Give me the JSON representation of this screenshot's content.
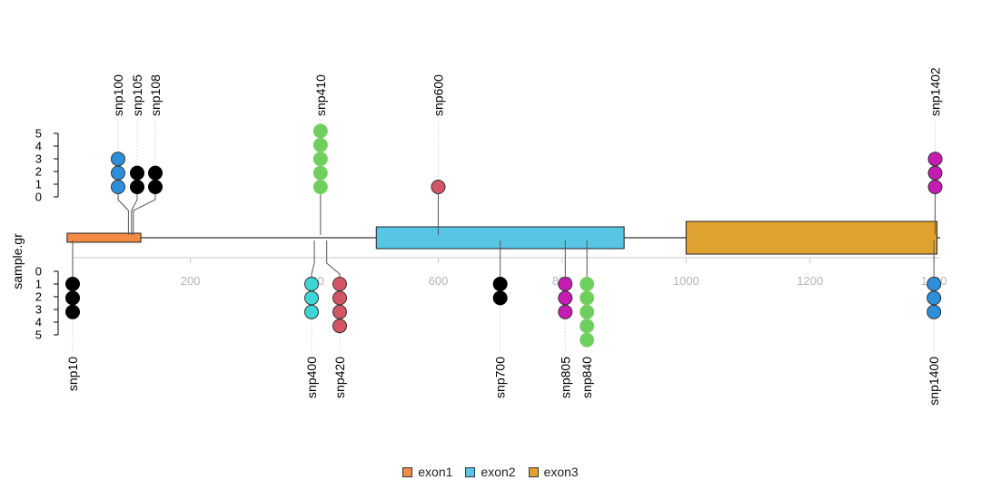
{
  "chart_data": {
    "type": "lollipop",
    "ylabel": "sample.gr",
    "xlim": [
      10,
      1410
    ],
    "x_ticks": [
      200,
      400,
      600,
      800,
      1000,
      1200,
      1400
    ],
    "y_ticks": [
      0,
      1,
      2,
      3,
      4,
      5
    ],
    "features": [
      {
        "name": "exon1",
        "start": 1,
        "end": 120,
        "color": "#F28C45"
      },
      {
        "name": "exon2",
        "start": 500,
        "end": 900,
        "color": "#56C6E4"
      },
      {
        "name": "exon3",
        "start": 1000,
        "end": 1405,
        "color": "#E0A22E"
      }
    ],
    "snps": [
      {
        "name": "snp10",
        "pos": 10,
        "score": 3,
        "side": "bottom",
        "color": "#000000"
      },
      {
        "name": "snp100",
        "pos": 100,
        "score": 3,
        "side": "top",
        "color": "#2D8FDA"
      },
      {
        "name": "snp105",
        "pos": 105,
        "score": 2,
        "side": "top",
        "color": "#000000"
      },
      {
        "name": "snp108",
        "pos": 108,
        "score": 2,
        "side": "top",
        "color": "#000000"
      },
      {
        "name": "snp400",
        "pos": 400,
        "score": 3,
        "side": "bottom",
        "color": "#3DD5D5"
      },
      {
        "name": "snp410",
        "pos": 410,
        "score": 5,
        "side": "top",
        "color": "#6DCF5C"
      },
      {
        "name": "snp420",
        "pos": 420,
        "score": 4,
        "side": "bottom",
        "color": "#D45566"
      },
      {
        "name": "snp600",
        "pos": 600,
        "score": 1,
        "side": "top",
        "color": "#D45566"
      },
      {
        "name": "snp700",
        "pos": 700,
        "score": 2,
        "side": "bottom",
        "color": "#000000"
      },
      {
        "name": "snp805",
        "pos": 805,
        "score": 3,
        "side": "bottom",
        "color": "#C61CB4"
      },
      {
        "name": "snp840",
        "pos": 840,
        "score": 5,
        "side": "bottom",
        "color": "#6DCF5C"
      },
      {
        "name": "snp1400",
        "pos": 1400,
        "score": 3,
        "side": "bottom",
        "color": "#2D8FDA"
      },
      {
        "name": "snp1402",
        "pos": 1402,
        "score": 3,
        "side": "top",
        "color": "#C61CB4"
      }
    ]
  }
}
